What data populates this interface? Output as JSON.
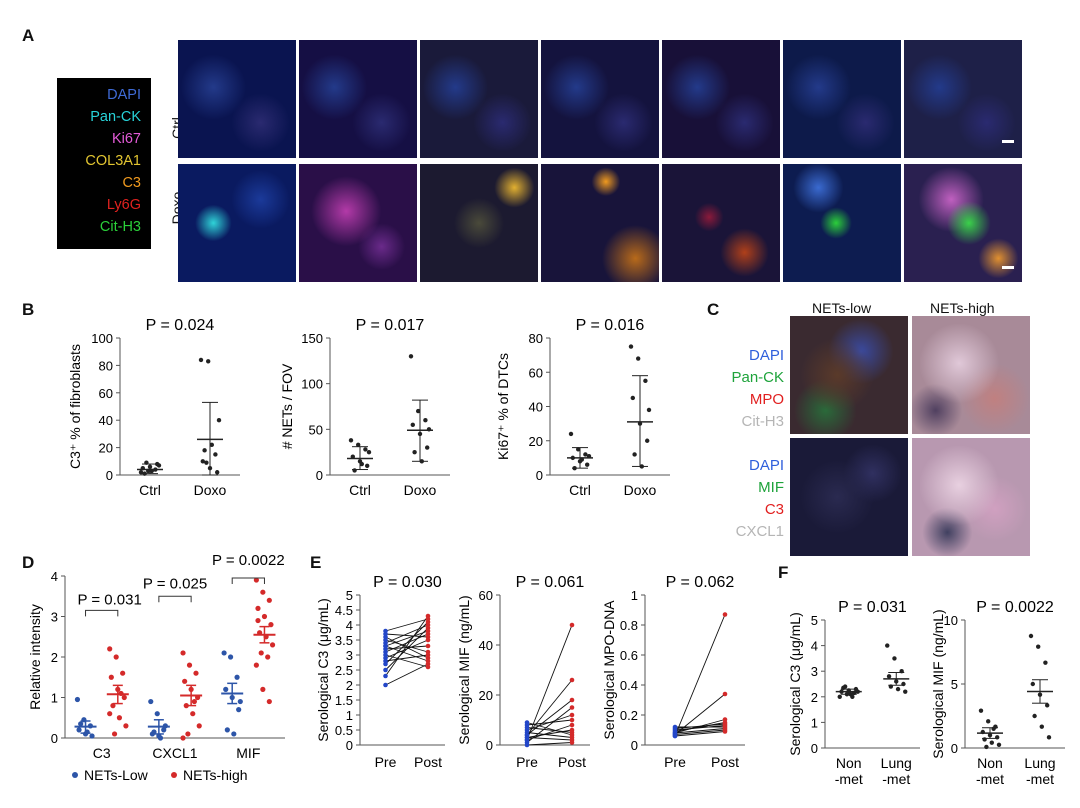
{
  "panels": {
    "A": "A",
    "B": "B",
    "C": "C",
    "D": "D",
    "E": "E",
    "F": "F"
  },
  "panelA": {
    "legend": [
      {
        "label": "DAPI",
        "color": "#3f6bd6"
      },
      {
        "label": "Pan-CK",
        "color": "#28d2d8"
      },
      {
        "label": "Ki67",
        "color": "#e45bd8"
      },
      {
        "label": "COL3A1",
        "color": "#e2c531"
      },
      {
        "label": "C3",
        "color": "#f09a1f"
      },
      {
        "label": "Ly6G",
        "color": "#e0221f"
      },
      {
        "label": "Cit-H3",
        "color": "#2bcf3a"
      }
    ],
    "rows": [
      "Ctrl",
      "Doxo"
    ]
  },
  "panelC": {
    "columns": [
      "NETs-low",
      "NETs-high"
    ],
    "legend_top": [
      {
        "label": "DAPI",
        "color": "#2f5fdc"
      },
      {
        "label": "Pan-CK",
        "color": "#1ea33b"
      },
      {
        "label": "MPO",
        "color": "#e11f1f"
      },
      {
        "label": "Cit-H3",
        "color": "#b5b5b5"
      }
    ],
    "legend_bottom": [
      {
        "label": "DAPI",
        "color": "#2f5fdc"
      },
      {
        "label": "MIF",
        "color": "#1ea33b"
      },
      {
        "label": "C3",
        "color": "#e11f1f"
      },
      {
        "label": "CXCL1",
        "color": "#b5b5b5"
      }
    ]
  },
  "chart_data": [
    {
      "id": "B1",
      "type": "scatter",
      "pvalue": "P = 0.024",
      "ylabel": "C3⁺ % of fibroblasts",
      "ylim": [
        0,
        100
      ],
      "yticks": [
        "0",
        "20",
        "40",
        "60",
        "80",
        "100"
      ],
      "categories": [
        "Ctrl",
        "Doxo"
      ],
      "groups": [
        {
          "name": "Ctrl",
          "points": [
            2,
            3,
            4,
            5,
            6,
            8,
            1,
            3,
            7,
            9
          ],
          "mean": 4,
          "sd": [
            1,
            8
          ]
        },
        {
          "name": "Doxo",
          "points": [
            84,
            83,
            15,
            10,
            5,
            2,
            18,
            22,
            40,
            9
          ],
          "mean": 26,
          "sd": [
            0,
            53
          ]
        }
      ]
    },
    {
      "id": "B2",
      "type": "scatter",
      "pvalue": "P = 0.017",
      "ylabel": "# NETs / FOV",
      "ylim": [
        0,
        150
      ],
      "yticks": [
        "0",
        "50",
        "100",
        "150"
      ],
      "categories": [
        "Ctrl",
        "Doxo"
      ],
      "groups": [
        {
          "name": "Ctrl",
          "points": [
            38,
            33,
            28,
            20,
            15,
            10,
            5,
            12,
            25
          ],
          "mean": 18,
          "sd": [
            6,
            31
          ]
        },
        {
          "name": "Doxo",
          "points": [
            130,
            70,
            60,
            55,
            45,
            30,
            25,
            15,
            50
          ],
          "mean": 49,
          "sd": [
            15,
            82
          ]
        }
      ]
    },
    {
      "id": "B3",
      "type": "scatter",
      "pvalue": "P = 0.016",
      "ylabel": "Ki67⁺ % of DTCs",
      "ylim": [
        0,
        80
      ],
      "yticks": [
        "0",
        "20",
        "40",
        "60",
        "80"
      ],
      "categories": [
        "Ctrl",
        "Doxo"
      ],
      "groups": [
        {
          "name": "Ctrl",
          "points": [
            24,
            15,
            12,
            10,
            8,
            6,
            4,
            9,
            11
          ],
          "mean": 10,
          "sd": [
            4,
            16
          ]
        },
        {
          "name": "Doxo",
          "points": [
            75,
            68,
            55,
            45,
            30,
            20,
            12,
            5,
            38
          ],
          "mean": 31,
          "sd": [
            5,
            58
          ]
        }
      ]
    },
    {
      "id": "D",
      "type": "scatter",
      "ylabel": "Relative intensity",
      "ylim": [
        0,
        4
      ],
      "yticks": [
        "0",
        "1",
        "2",
        "3",
        "4"
      ],
      "categories": [
        "C3",
        "CXCL1",
        "MIF"
      ],
      "pvalues": [
        "P = 0.031",
        "P = 0.025",
        "P = 0.0022"
      ],
      "legend": [
        {
          "name": "NETs-Low",
          "color": "#2d55a8"
        },
        {
          "name": "NETs-high",
          "color": "#d42a2a"
        }
      ],
      "groups": [
        {
          "cat": "C3",
          "series": "NETs-Low",
          "points": [
            0.95,
            0.45,
            0.3,
            0.2,
            0.1,
            0.05,
            0.35,
            0.15
          ],
          "mean": 0.28,
          "sem": [
            0.12,
            0.42
          ]
        },
        {
          "cat": "C3",
          "series": "NETs-high",
          "points": [
            2.2,
            2.0,
            1.6,
            1.5,
            1.2,
            1.0,
            0.8,
            0.5,
            0.3,
            0.1,
            1.1,
            0.6
          ],
          "mean": 1.08,
          "sem": [
            0.85,
            1.3
          ]
        },
        {
          "cat": "CXCL1",
          "series": "NETs-Low",
          "points": [
            0.9,
            0.6,
            0.2,
            0.1,
            0.05,
            0.3,
            0.15,
            0.0
          ],
          "mean": 0.28,
          "sem": [
            0.1,
            0.45
          ]
        },
        {
          "cat": "CXCL1",
          "series": "NETs-high",
          "points": [
            2.1,
            1.8,
            1.6,
            1.4,
            1.2,
            1.0,
            0.8,
            0.6,
            0.3,
            0.1,
            0.9,
            0.0
          ],
          "mean": 1.05,
          "sem": [
            0.8,
            1.3
          ]
        },
        {
          "cat": "MIF",
          "series": "NETs-Low",
          "points": [
            2.1,
            2.0,
            1.5,
            1.2,
            1.0,
            0.7,
            0.2,
            0.1,
            0.9
          ],
          "mean": 1.1,
          "sem": [
            0.85,
            1.35
          ]
        },
        {
          "cat": "MIF",
          "series": "NETs-high",
          "points": [
            3.9,
            3.6,
            3.4,
            3.2,
            3.0,
            2.8,
            2.6,
            2.5,
            2.3,
            2.1,
            2.0,
            1.8,
            1.2,
            0.9,
            2.9
          ],
          "mean": 2.55,
          "sem": [
            2.35,
            2.75
          ]
        }
      ]
    },
    {
      "id": "E1",
      "type": "line",
      "pvalue": "P = 0.030",
      "ylabel": "Serological C3 (μg/mL)",
      "ylim": [
        0,
        5
      ],
      "yticks": [
        "0",
        "0.5",
        "1",
        "1.5",
        "2",
        "2.5",
        "3",
        "3.5",
        "4",
        "4.5",
        "5"
      ],
      "categories": [
        "Pre",
        "Post"
      ],
      "pairs": [
        [
          2.3,
          4.3
        ],
        [
          2.5,
          3.9
        ],
        [
          2.7,
          4.1
        ],
        [
          2.9,
          3.5
        ],
        [
          3.0,
          2.6
        ],
        [
          3.1,
          3.7
        ],
        [
          3.2,
          3.3
        ],
        [
          3.3,
          2.8
        ],
        [
          3.4,
          4.0
        ],
        [
          3.5,
          3.1
        ],
        [
          3.6,
          2.9
        ],
        [
          3.7,
          3.6
        ],
        [
          3.8,
          4.2
        ],
        [
          2.0,
          2.7
        ],
        [
          2.8,
          3.0
        ],
        [
          3.3,
          3.8
        ]
      ]
    },
    {
      "id": "E2",
      "type": "line",
      "pvalue": "P = 0.061",
      "ylabel": "Serological MIF (ng/mL)",
      "ylim": [
        0,
        60
      ],
      "yticks": [
        "0",
        "20",
        "40",
        "60"
      ],
      "categories": [
        "Pre",
        "Post"
      ],
      "pairs": [
        [
          2,
          48
        ],
        [
          4,
          26
        ],
        [
          6,
          12
        ],
        [
          8,
          10
        ],
        [
          3,
          6
        ],
        [
          5,
          3
        ],
        [
          1,
          15
        ],
        [
          2,
          8
        ],
        [
          3,
          2
        ],
        [
          7,
          5
        ],
        [
          9,
          4
        ],
        [
          0,
          1
        ],
        [
          4,
          18
        ]
      ]
    },
    {
      "id": "E3",
      "type": "line",
      "pvalue": "P = 0.062",
      "ylabel": "Serological MPO-DNA",
      "ylim": [
        0,
        1
      ],
      "yticks": [
        "0",
        "0.2",
        "0.4",
        "0.6",
        "0.8",
        "1"
      ],
      "categories": [
        "Pre",
        "Post"
      ],
      "pairs": [
        [
          0.06,
          0.87
        ],
        [
          0.07,
          0.34
        ],
        [
          0.08,
          0.17
        ],
        [
          0.09,
          0.15
        ],
        [
          0.1,
          0.13
        ],
        [
          0.12,
          0.12
        ],
        [
          0.08,
          0.11
        ],
        [
          0.07,
          0.1
        ],
        [
          0.06,
          0.09
        ],
        [
          0.11,
          0.14
        ]
      ]
    },
    {
      "id": "F1",
      "type": "scatter",
      "pvalue": "P = 0.031",
      "ylabel": "Serological C3 (μg/mL)",
      "ylim": [
        0,
        5
      ],
      "yticks": [
        "0",
        "1",
        "2",
        "3",
        "4",
        "5"
      ],
      "categories": [
        "Non\n-met",
        "Lung\n-met"
      ],
      "groups": [
        {
          "name": "Non -met",
          "points": [
            2.0,
            2.1,
            2.15,
            2.2,
            2.25,
            2.3,
            2.35,
            2.1,
            2.2,
            2.4,
            2.0
          ],
          "mean": 2.2,
          "sem": [
            2.1,
            2.3
          ]
        },
        {
          "name": "Lung -met",
          "points": [
            4.0,
            3.5,
            3.0,
            2.8,
            2.6,
            2.5,
            2.4,
            2.3,
            2.2
          ],
          "mean": 2.7,
          "sem": [
            2.45,
            2.95
          ]
        }
      ]
    },
    {
      "id": "F2",
      "type": "scatter",
      "pvalue": "P = 0.0022",
      "ylabel": "Serological MIF (ng/mL)",
      "ylim": [
        0,
        12
      ],
      "yticks": [
        "0",
        "5",
        "10"
      ],
      "categories": [
        "Non\n-met",
        "Lung\n-met"
      ],
      "groups": [
        {
          "name": "Non -met",
          "points": [
            3.5,
            2.5,
            2.0,
            1.5,
            1.2,
            1.0,
            0.8,
            0.5,
            0.3,
            0.1,
            1.8
          ],
          "mean": 1.4,
          "sem": [
            0.9,
            1.9
          ]
        },
        {
          "name": "Lung -met",
          "points": [
            10.5,
            9.5,
            8,
            6,
            5,
            4,
            3,
            2,
            1
          ],
          "mean": 5.3,
          "sem": [
            4.2,
            6.4
          ]
        }
      ]
    }
  ]
}
